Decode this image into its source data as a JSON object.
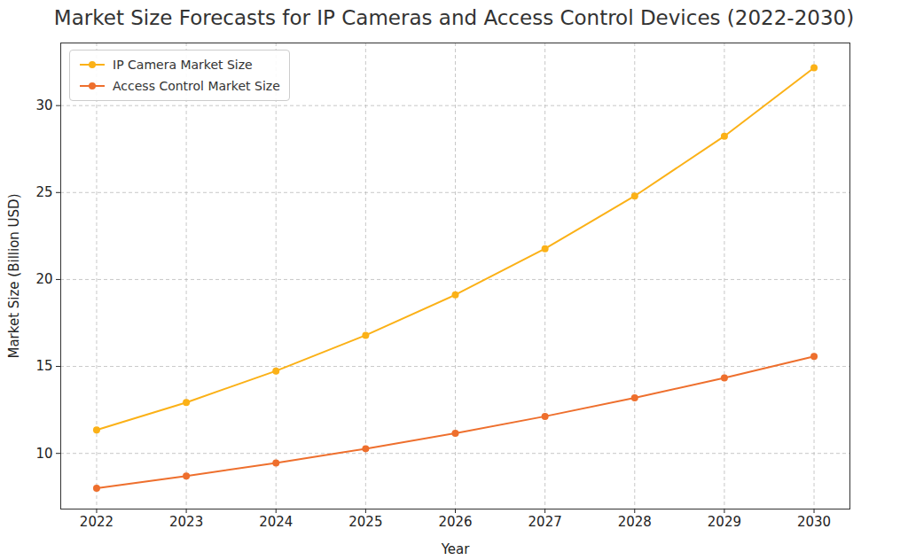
{
  "chart_data": {
    "type": "line",
    "title": "Market Size Forecasts for IP Cameras and Access Control Devices (2022-2030)",
    "x_label": "Year",
    "y_label": "Market Size (Billion USD)",
    "x": [
      2022,
      2023,
      2024,
      2025,
      2026,
      2027,
      2028,
      2029,
      2030
    ],
    "series": [
      {
        "name": "IP Camera Market Size",
        "color": "#fbb117",
        "marker": "o",
        "line_style": "solid",
        "values": [
          11.35,
          12.93,
          14.74,
          16.79,
          19.12,
          21.77,
          24.8,
          28.24,
          32.17
        ]
      },
      {
        "name": "Access Control Market Size",
        "color": "#ee6f2d",
        "marker": "o",
        "line_style": "solid",
        "values": [
          8.0,
          8.7,
          9.45,
          10.27,
          11.16,
          12.13,
          13.19,
          14.34,
          15.58
        ]
      }
    ],
    "xlim": [
      2021.6,
      2030.4
    ],
    "xticks": [
      2022,
      2023,
      2024,
      2025,
      2026,
      2027,
      2028,
      2029,
      2030
    ],
    "ylim": [
      6.8,
      33.6
    ],
    "yticks": [
      10,
      15,
      20,
      25,
      30
    ],
    "grid": true,
    "legend": "upper left"
  }
}
